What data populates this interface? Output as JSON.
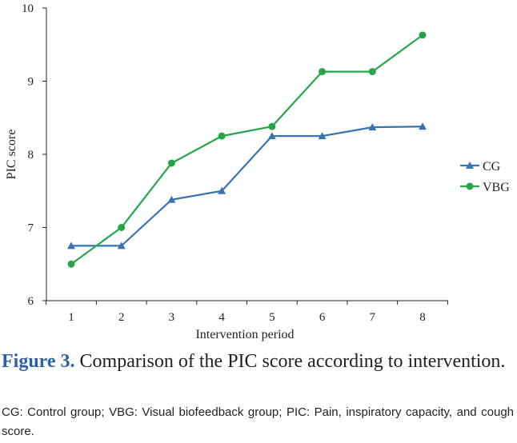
{
  "chart_data": {
    "type": "line",
    "title": "",
    "xlabel": "Intervention period",
    "ylabel": "PIC score",
    "x": [
      1,
      2,
      3,
      4,
      5,
      6,
      7,
      8
    ],
    "x_tick_labels": [
      "1",
      "2",
      "3",
      "4",
      "5",
      "6",
      "7",
      "8"
    ],
    "ylim": [
      6,
      10
    ],
    "y_ticks": [
      6,
      7,
      8,
      9,
      10
    ],
    "y_tick_labels": [
      "6",
      "7",
      "8",
      "9",
      "10"
    ],
    "grid": false,
    "legend_position": "right",
    "series": [
      {
        "name": "CG",
        "color": "#3a73b3",
        "marker": "triangle",
        "values": [
          6.75,
          6.75,
          7.38,
          7.5,
          8.25,
          8.25,
          8.37,
          8.38
        ]
      },
      {
        "name": "VBG",
        "color": "#26a54a",
        "marker": "circle",
        "values": [
          6.5,
          7.0,
          7.88,
          8.25,
          8.38,
          9.13,
          9.13,
          9.63
        ]
      }
    ]
  },
  "caption": {
    "label": "Figure 3.",
    "text": " Comparison of the PIC score according to intervention."
  },
  "footnote": "CG: Control group; VBG: Visual biofeedback group; PIC: Pain, inspiratory capacity, and cough score.",
  "colors": {
    "axis": "#231f20",
    "caption_label": "#2e5ea8"
  }
}
